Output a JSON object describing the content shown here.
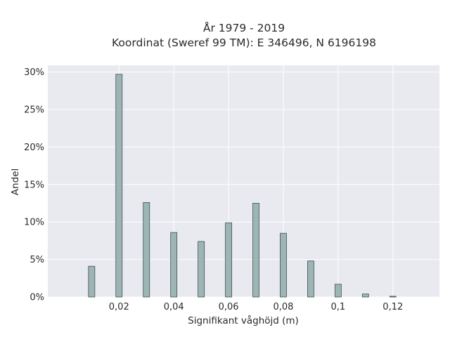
{
  "chart_data": {
    "type": "bar",
    "title_lines": [
      "År 1979 - 2019",
      "Koordinat (Sweref 99 TM): E 346496, N 6196198"
    ],
    "xlabel": "Signifikant våghöjd (m)",
    "ylabel": "Andel",
    "x": [
      0.01,
      0.02,
      0.03,
      0.04,
      0.05,
      0.06,
      0.07,
      0.08,
      0.09,
      0.1,
      0.11,
      0.12
    ],
    "values": [
      4.1,
      29.7,
      12.6,
      8.6,
      7.4,
      9.9,
      12.5,
      8.5,
      4.8,
      1.7,
      0.4,
      0.1
    ],
    "xlim": [
      -0.006,
      0.137
    ],
    "ylim": [
      0,
      30.9
    ],
    "xticks": [
      0.02,
      0.04,
      0.06,
      0.08,
      0.1,
      0.12
    ],
    "xtick_labels": [
      "0,02",
      "0,04",
      "0,06",
      "0,08",
      "0,1",
      "0,12"
    ],
    "yticks": [
      0,
      5,
      10,
      15,
      20,
      25,
      30
    ],
    "ytick_labels": [
      "0%",
      "5%",
      "10%",
      "15%",
      "20%",
      "25%",
      "30%"
    ],
    "grid": true,
    "colors": {
      "bar_fill": "#9db5b5",
      "bar_edge": "#3e5252",
      "plot_background": "#e9e9f0",
      "grid": "#ffffff"
    }
  }
}
